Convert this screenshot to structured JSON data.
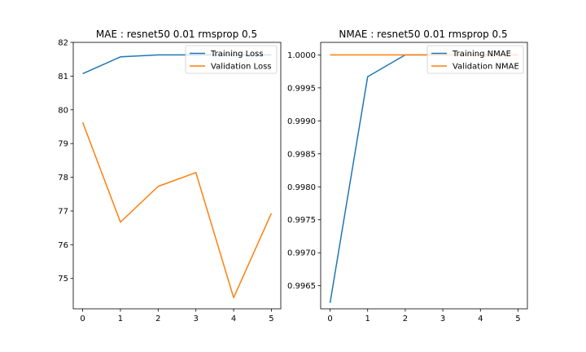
{
  "chart_data": [
    {
      "type": "line",
      "title": "MAE : resnet50 0.01 rmsprop 0.5",
      "xlabel": "",
      "ylabel": "",
      "x": [
        0,
        1,
        2,
        3,
        4,
        5
      ],
      "xlim": [
        -0.25,
        5.25
      ],
      "ylim": [
        74.1,
        82.0
      ],
      "xticks": [
        0,
        1,
        2,
        3,
        4,
        5
      ],
      "yticks": [
        75,
        76,
        77,
        78,
        79,
        80,
        81,
        82
      ],
      "ytick_labels": [
        "75",
        "76",
        "77",
        "78",
        "79",
        "80",
        "81",
        "82"
      ],
      "grid": false,
      "legend_position": "top-right",
      "series": [
        {
          "name": "Training Loss",
          "color": "#1f77b4",
          "values": [
            81.07,
            81.57,
            81.63,
            81.63,
            81.63,
            81.63
          ]
        },
        {
          "name": "Validation Loss",
          "color": "#ff7f0e",
          "values": [
            79.63,
            76.67,
            77.73,
            78.14,
            74.43,
            76.93
          ]
        }
      ]
    },
    {
      "type": "line",
      "title": "NMAE : resnet50 0.01 rmsprop 0.5",
      "xlabel": "",
      "ylabel": "",
      "x": [
        0,
        1,
        2,
        3,
        4,
        5
      ],
      "xlim": [
        -0.25,
        5.25
      ],
      "ylim": [
        0.99615,
        1.00019
      ],
      "xticks": [
        0,
        1,
        2,
        3,
        4,
        5
      ],
      "yticks": [
        0.9965,
        0.997,
        0.9975,
        0.998,
        0.9985,
        0.999,
        0.9995,
        1.0
      ],
      "ytick_labels": [
        "0.9965",
        "0.9970",
        "0.9975",
        "0.9980",
        "0.9985",
        "0.9990",
        "0.9995",
        "1.0000"
      ],
      "grid": false,
      "legend_position": "top-right",
      "series": [
        {
          "name": "Training NMAE",
          "color": "#1f77b4",
          "values": [
            0.99624,
            0.99967,
            1.0,
            1.0,
            1.0,
            1.0
          ]
        },
        {
          "name": "Validation NMAE",
          "color": "#ff7f0e",
          "values": [
            1.0,
            1.0,
            1.0,
            1.0,
            1.0,
            1.0
          ]
        }
      ]
    }
  ]
}
